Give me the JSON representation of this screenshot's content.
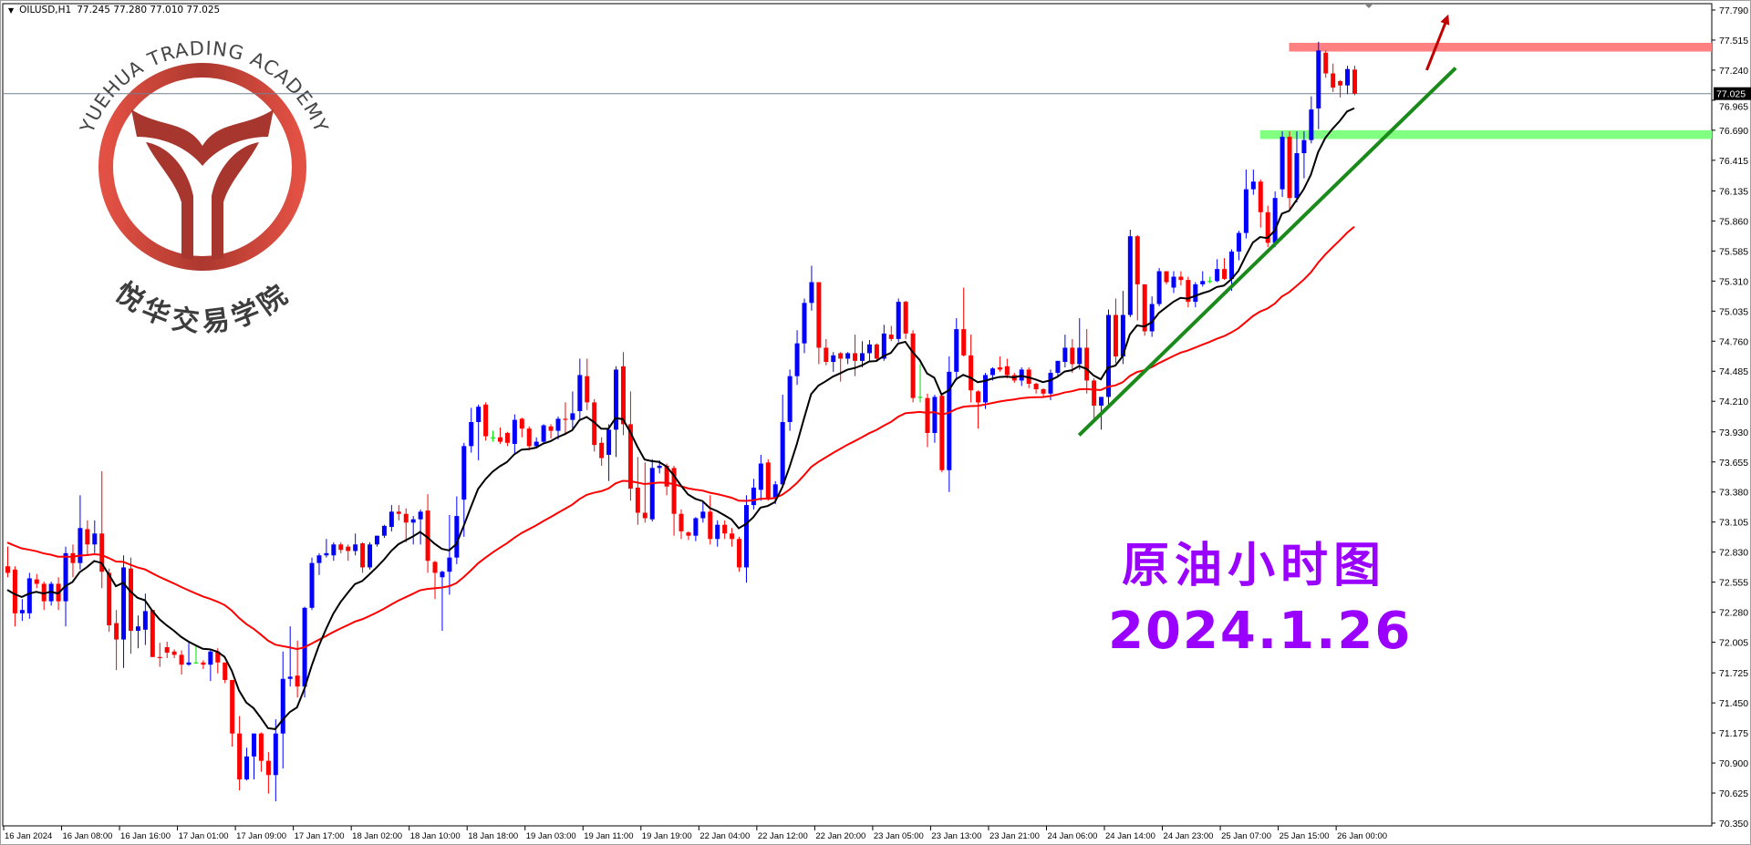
{
  "header": {
    "symbol_timeframe": "OILUSD,H1",
    "ohlc": "77.245 77.280 77.010 77.025",
    "menu_icon": "triangle-down-icon"
  },
  "logo": {
    "text_en": "YUEHUA TRADING ACADEMY",
    "text_cn": "悦华交易学院",
    "color": "#c0392b"
  },
  "annotation": {
    "title": "原油小时图",
    "date": "2024.1.26",
    "color": "#9900ff"
  },
  "chart_data": {
    "type": "candlestick",
    "symbol": "OILUSD",
    "timeframe": "H1",
    "ylim": [
      70.35,
      77.79
    ],
    "grid": false,
    "current_price": "77.025",
    "y_ticks": [
      "77.790",
      "77.515",
      "77.240",
      "76.965",
      "76.690",
      "76.415",
      "76.135",
      "75.860",
      "75.585",
      "75.310",
      "75.035",
      "74.760",
      "74.485",
      "74.210",
      "73.930",
      "73.655",
      "73.380",
      "73.105",
      "72.830",
      "72.555",
      "72.280",
      "72.005",
      "71.725",
      "71.450",
      "71.175",
      "70.900",
      "70.625",
      "70.350"
    ],
    "x_ticks": [
      "16 Jan 2024",
      "16 Jan 08:00",
      "16 Jan 16:00",
      "17 Jan 01:00",
      "17 Jan 09:00",
      "17 Jan 17:00",
      "18 Jan 02:00",
      "18 Jan 10:00",
      "18 Jan 18:00",
      "19 Jan 03:00",
      "19 Jan 11:00",
      "19 Jan 19:00",
      "22 Jan 04:00",
      "22 Jan 12:00",
      "22 Jan 20:00",
      "23 Jan 05:00",
      "23 Jan 13:00",
      "23 Jan 21:00",
      "24 Jan 06:00",
      "24 Jan 14:00",
      "24 Jan 23:00",
      "25 Jan 07:00",
      "25 Jan 15:00",
      "26 Jan 00:00"
    ],
    "colors": {
      "bull": "#0000ff",
      "bear": "#ff0000",
      "doji": "#00e000",
      "ma_fast": "#000000",
      "ma_slow": "#ff0000",
      "price_line": "#708090",
      "trendline": "#1a8a1a",
      "arrow": "#c00000",
      "resistance_zone": "#ff8080",
      "support_zone": "#80ff80"
    },
    "candles_ohlc": [
      [
        72.7,
        72.88,
        72.6,
        72.64
      ],
      [
        72.67,
        72.7,
        72.15,
        72.27
      ],
      [
        72.27,
        72.4,
        72.2,
        72.3
      ],
      [
        72.27,
        72.64,
        72.22,
        72.59
      ],
      [
        72.58,
        72.63,
        72.5,
        72.54
      ],
      [
        72.54,
        72.56,
        72.3,
        72.38
      ],
      [
        72.38,
        72.56,
        72.34,
        72.54
      ],
      [
        72.54,
        72.6,
        72.3,
        72.38
      ],
      [
        72.38,
        72.88,
        72.15,
        72.82
      ],
      [
        72.82,
        72.9,
        72.6,
        72.73
      ],
      [
        72.73,
        73.35,
        72.67,
        73.05
      ],
      [
        73.04,
        73.12,
        72.8,
        72.9
      ],
      [
        72.9,
        73.12,
        72.82,
        73.0
      ],
      [
        73.0,
        73.57,
        72.5,
        72.65
      ],
      [
        72.64,
        72.68,
        72.1,
        72.16
      ],
      [
        72.18,
        72.3,
        71.75,
        72.03
      ],
      [
        72.03,
        72.8,
        71.77,
        72.69
      ],
      [
        72.68,
        72.78,
        71.9,
        72.11
      ],
      [
        72.11,
        72.25,
        71.95,
        72.15
      ],
      [
        72.12,
        72.45,
        71.98,
        72.29
      ],
      [
        72.3,
        72.3,
        71.87,
        71.87
      ],
      [
        71.87,
        72.0,
        71.78,
        71.86
      ],
      [
        71.96,
        72.01,
        71.86,
        71.91
      ],
      [
        71.92,
        71.94,
        71.86,
        71.89
      ],
      [
        71.89,
        71.93,
        71.71,
        71.8
      ],
      [
        71.8,
        72.0,
        71.79,
        71.82
      ],
      [
        71.82,
        71.98,
        71.81,
        71.82
      ],
      [
        71.82,
        71.84,
        71.76,
        71.8
      ],
      [
        71.8,
        71.93,
        71.65,
        71.92
      ],
      [
        71.92,
        71.95,
        71.72,
        71.82
      ],
      [
        71.82,
        71.82,
        71.63,
        71.66
      ],
      [
        71.66,
        71.66,
        71.05,
        71.17
      ],
      [
        71.17,
        71.33,
        70.65,
        70.75
      ],
      [
        70.75,
        71.04,
        70.74,
        70.96
      ],
      [
        70.96,
        71.17,
        70.75,
        71.17
      ],
      [
        71.17,
        71.18,
        70.82,
        70.92
      ],
      [
        70.92,
        71.0,
        70.62,
        70.79
      ],
      [
        70.79,
        71.3,
        70.55,
        71.17
      ],
      [
        71.17,
        71.92,
        70.85,
        71.67
      ],
      [
        71.67,
        72.15,
        71.6,
        71.69
      ],
      [
        71.7,
        72.02,
        71.5,
        71.6
      ],
      [
        71.6,
        72.33,
        71.5,
        72.32
      ],
      [
        72.32,
        72.78,
        72.3,
        72.73
      ],
      [
        72.73,
        72.82,
        72.62,
        72.8
      ],
      [
        72.8,
        72.95,
        72.78,
        72.82
      ],
      [
        72.8,
        72.92,
        72.75,
        72.9
      ],
      [
        72.9,
        72.92,
        72.82,
        72.85
      ],
      [
        72.88,
        72.9,
        72.75,
        72.84
      ],
      [
        72.84,
        73.0,
        72.8,
        72.9
      ],
      [
        72.91,
        72.92,
        72.64,
        72.69
      ],
      [
        72.69,
        72.92,
        72.67,
        72.9
      ],
      [
        72.9,
        72.98,
        72.88,
        72.98
      ],
      [
        72.98,
        73.08,
        72.96,
        73.07
      ],
      [
        73.06,
        73.26,
        73.02,
        73.2
      ],
      [
        73.2,
        73.26,
        73.12,
        73.18
      ],
      [
        73.18,
        73.23,
        72.92,
        73.1
      ],
      [
        73.1,
        73.16,
        72.9,
        73.13
      ],
      [
        73.13,
        73.22,
        72.9,
        73.2
      ],
      [
        73.21,
        73.36,
        72.64,
        72.75
      ],
      [
        72.74,
        72.75,
        72.4,
        72.64
      ],
      [
        72.6,
        72.66,
        72.11,
        72.65
      ],
      [
        72.65,
        73.17,
        72.44,
        72.78
      ],
      [
        72.78,
        73.34,
        72.72,
        73.16
      ],
      [
        73.31,
        73.83,
        72.97,
        73.8
      ],
      [
        73.8,
        74.15,
        73.74,
        74.02
      ],
      [
        74.02,
        74.18,
        73.67,
        74.16
      ],
      [
        74.18,
        74.2,
        73.85,
        73.89
      ],
      [
        73.88,
        73.94,
        73.84,
        73.88
      ],
      [
        73.88,
        73.97,
        73.82,
        73.84
      ],
      [
        73.92,
        73.93,
        73.8,
        73.83
      ],
      [
        73.82,
        74.09,
        73.73,
        74.04
      ],
      [
        74.05,
        74.06,
        73.88,
        73.96
      ],
      [
        73.96,
        73.98,
        73.76,
        73.8
      ],
      [
        73.8,
        73.88,
        73.78,
        73.84
      ],
      [
        73.84,
        74.0,
        73.82,
        73.99
      ],
      [
        73.98,
        74.0,
        73.87,
        73.94
      ],
      [
        73.94,
        74.07,
        73.86,
        74.05
      ],
      [
        74.05,
        74.2,
        73.9,
        74.04
      ],
      [
        74.04,
        74.3,
        73.95,
        74.1
      ],
      [
        74.12,
        74.6,
        74.04,
        74.45
      ],
      [
        74.44,
        74.6,
        74.13,
        74.2
      ],
      [
        74.2,
        74.23,
        73.75,
        73.81
      ],
      [
        73.83,
        73.88,
        73.62,
        73.69
      ],
      [
        73.72,
        74.0,
        73.48,
        73.95
      ],
      [
        73.95,
        74.53,
        73.7,
        74.5
      ],
      [
        74.53,
        74.66,
        73.9,
        74.0
      ],
      [
        74.0,
        74.3,
        73.3,
        73.41
      ],
      [
        73.42,
        73.7,
        73.08,
        73.19
      ],
      [
        73.19,
        73.65,
        73.1,
        73.14
      ],
      [
        73.13,
        73.68,
        73.11,
        73.6
      ],
      [
        73.6,
        73.67,
        73.55,
        73.62
      ],
      [
        73.62,
        73.64,
        73.35,
        73.43
      ],
      [
        73.6,
        73.62,
        72.98,
        73.18
      ],
      [
        73.18,
        73.22,
        72.95,
        73.02
      ],
      [
        73.01,
        73.02,
        72.94,
        72.98
      ],
      [
        72.98,
        73.15,
        72.93,
        73.14
      ],
      [
        73.14,
        73.3,
        73.1,
        73.2
      ],
      [
        73.2,
        73.35,
        72.9,
        72.95
      ],
      [
        72.95,
        73.12,
        72.88,
        73.08
      ],
      [
        73.08,
        73.12,
        72.95,
        73.0
      ],
      [
        73.0,
        73.05,
        72.88,
        72.95
      ],
      [
        72.95,
        72.97,
        72.65,
        72.69
      ],
      [
        72.69,
        73.35,
        72.55,
        73.26
      ],
      [
        73.26,
        73.5,
        73.22,
        73.42
      ],
      [
        73.4,
        73.72,
        73.3,
        73.64
      ],
      [
        73.65,
        73.68,
        73.3,
        73.32
      ],
      [
        73.32,
        73.48,
        73.27,
        73.45
      ],
      [
        73.45,
        74.27,
        73.42,
        74.02
      ],
      [
        74.02,
        74.5,
        73.94,
        74.44
      ],
      [
        74.44,
        74.86,
        74.36,
        74.74
      ],
      [
        74.74,
        75.15,
        74.65,
        75.11
      ],
      [
        75.11,
        75.45,
        75.04,
        75.3
      ],
      [
        75.3,
        75.3,
        74.55,
        74.7
      ],
      [
        74.7,
        74.78,
        74.54,
        74.57
      ],
      [
        74.57,
        74.66,
        74.48,
        74.63
      ],
      [
        74.65,
        74.66,
        74.39,
        74.6
      ],
      [
        74.6,
        74.66,
        74.55,
        74.65
      ],
      [
        74.65,
        74.82,
        74.44,
        74.58
      ],
      [
        74.58,
        74.76,
        74.52,
        74.65
      ],
      [
        74.65,
        74.77,
        74.57,
        74.73
      ],
      [
        74.73,
        74.74,
        74.57,
        74.6
      ],
      [
        74.6,
        74.91,
        74.58,
        74.83
      ],
      [
        74.82,
        74.9,
        74.76,
        74.78
      ],
      [
        74.78,
        75.15,
        74.75,
        75.12
      ],
      [
        75.12,
        75.13,
        74.78,
        74.83
      ],
      [
        74.83,
        74.86,
        74.2,
        74.24
      ],
      [
        74.25,
        74.55,
        74.2,
        74.25
      ],
      [
        74.24,
        74.28,
        73.79,
        73.92
      ],
      [
        73.92,
        74.27,
        73.83,
        74.25
      ],
      [
        74.26,
        74.27,
        73.56,
        73.58
      ],
      [
        73.58,
        74.62,
        73.38,
        74.48
      ],
      [
        74.48,
        74.97,
        74.4,
        74.87
      ],
      [
        74.87,
        75.25,
        74.62,
        74.63
      ],
      [
        74.63,
        74.82,
        74.2,
        74.31
      ],
      [
        74.3,
        74.31,
        73.96,
        74.2
      ],
      [
        74.2,
        74.47,
        74.14,
        74.45
      ],
      [
        74.45,
        74.52,
        74.4,
        74.51
      ],
      [
        74.52,
        74.62,
        74.48,
        74.5
      ],
      [
        74.53,
        74.6,
        74.42,
        74.45
      ],
      [
        74.45,
        74.47,
        74.38,
        74.4
      ],
      [
        74.4,
        74.52,
        74.35,
        74.5
      ],
      [
        74.5,
        74.52,
        74.33,
        74.37
      ],
      [
        74.37,
        74.38,
        74.28,
        74.32
      ],
      [
        74.32,
        74.33,
        74.25,
        74.28
      ],
      [
        74.28,
        74.5,
        74.22,
        74.47
      ],
      [
        74.47,
        74.58,
        74.44,
        74.58
      ],
      [
        74.57,
        74.82,
        74.52,
        74.7
      ],
      [
        74.7,
        74.78,
        74.47,
        74.55
      ],
      [
        74.55,
        74.97,
        74.5,
        74.7
      ],
      [
        74.7,
        74.87,
        74.28,
        74.4
      ],
      [
        74.4,
        74.42,
        74.05,
        74.17
      ],
      [
        74.17,
        74.25,
        73.95,
        74.25
      ],
      [
        74.25,
        75.05,
        74.18,
        75.0
      ],
      [
        75.0,
        75.15,
        74.56,
        74.62
      ],
      [
        74.62,
        75.22,
        74.55,
        75.0
      ],
      [
        75.0,
        75.78,
        74.98,
        75.72
      ],
      [
        75.72,
        75.73,
        74.95,
        75.28
      ],
      [
        75.28,
        75.28,
        74.81,
        74.85
      ],
      [
        74.85,
        75.17,
        74.8,
        75.1
      ],
      [
        75.1,
        75.43,
        75.08,
        75.4
      ],
      [
        75.4,
        75.4,
        75.28,
        75.3
      ],
      [
        75.25,
        75.4,
        75.2,
        75.35
      ],
      [
        75.35,
        75.4,
        75.27,
        75.32
      ],
      [
        75.32,
        75.35,
        75.07,
        75.12
      ],
      [
        75.12,
        75.3,
        75.07,
        75.28
      ],
      [
        75.28,
        75.4,
        75.26,
        75.31
      ],
      [
        75.31,
        75.35,
        75.29,
        75.31
      ],
      [
        75.31,
        75.51,
        75.3,
        75.42
      ],
      [
        75.42,
        75.52,
        75.32,
        75.33
      ],
      [
        75.33,
        75.6,
        75.22,
        75.58
      ],
      [
        75.58,
        75.77,
        75.5,
        75.75
      ],
      [
        75.75,
        76.33,
        75.7,
        76.15
      ],
      [
        76.15,
        76.33,
        76.1,
        76.22
      ],
      [
        76.22,
        76.24,
        75.8,
        75.94
      ],
      [
        75.94,
        76.0,
        75.62,
        75.66
      ],
      [
        75.66,
        76.13,
        75.62,
        76.07
      ],
      [
        76.15,
        76.68,
        76.08,
        76.63
      ],
      [
        76.63,
        76.68,
        75.95,
        76.07
      ],
      [
        76.07,
        76.68,
        76.03,
        76.48
      ],
      [
        76.48,
        76.68,
        76.25,
        76.6
      ],
      [
        76.6,
        77.0,
        76.57,
        76.88
      ],
      [
        76.89,
        77.5,
        76.7,
        77.42
      ],
      [
        77.4,
        77.42,
        77.17,
        77.21
      ],
      [
        77.21,
        77.3,
        77.04,
        77.08
      ],
      [
        77.14,
        77.15,
        76.99,
        77.1
      ],
      [
        77.1,
        77.28,
        77.02,
        77.25
      ],
      [
        77.245,
        77.28,
        77.01,
        77.025
      ]
    ],
    "zones": [
      {
        "name": "resistance",
        "price_range": [
          77.41,
          77.49
        ],
        "from_time": "25 Jan 16:00"
      },
      {
        "name": "support",
        "price_range": [
          76.61,
          76.69
        ],
        "from_time": "25 Jan 12:00"
      }
    ],
    "trendline": {
      "from": {
        "time": "24 Jan 11:00",
        "price": 73.9
      },
      "to": {
        "time": "26 Jan 15:00",
        "price": 77.26
      }
    },
    "arrow": {
      "from": {
        "time": "26 Jan 11:00",
        "price": 77.24
      },
      "to": {
        "time": "26 Jan 14:00",
        "price": 77.75
      }
    }
  }
}
